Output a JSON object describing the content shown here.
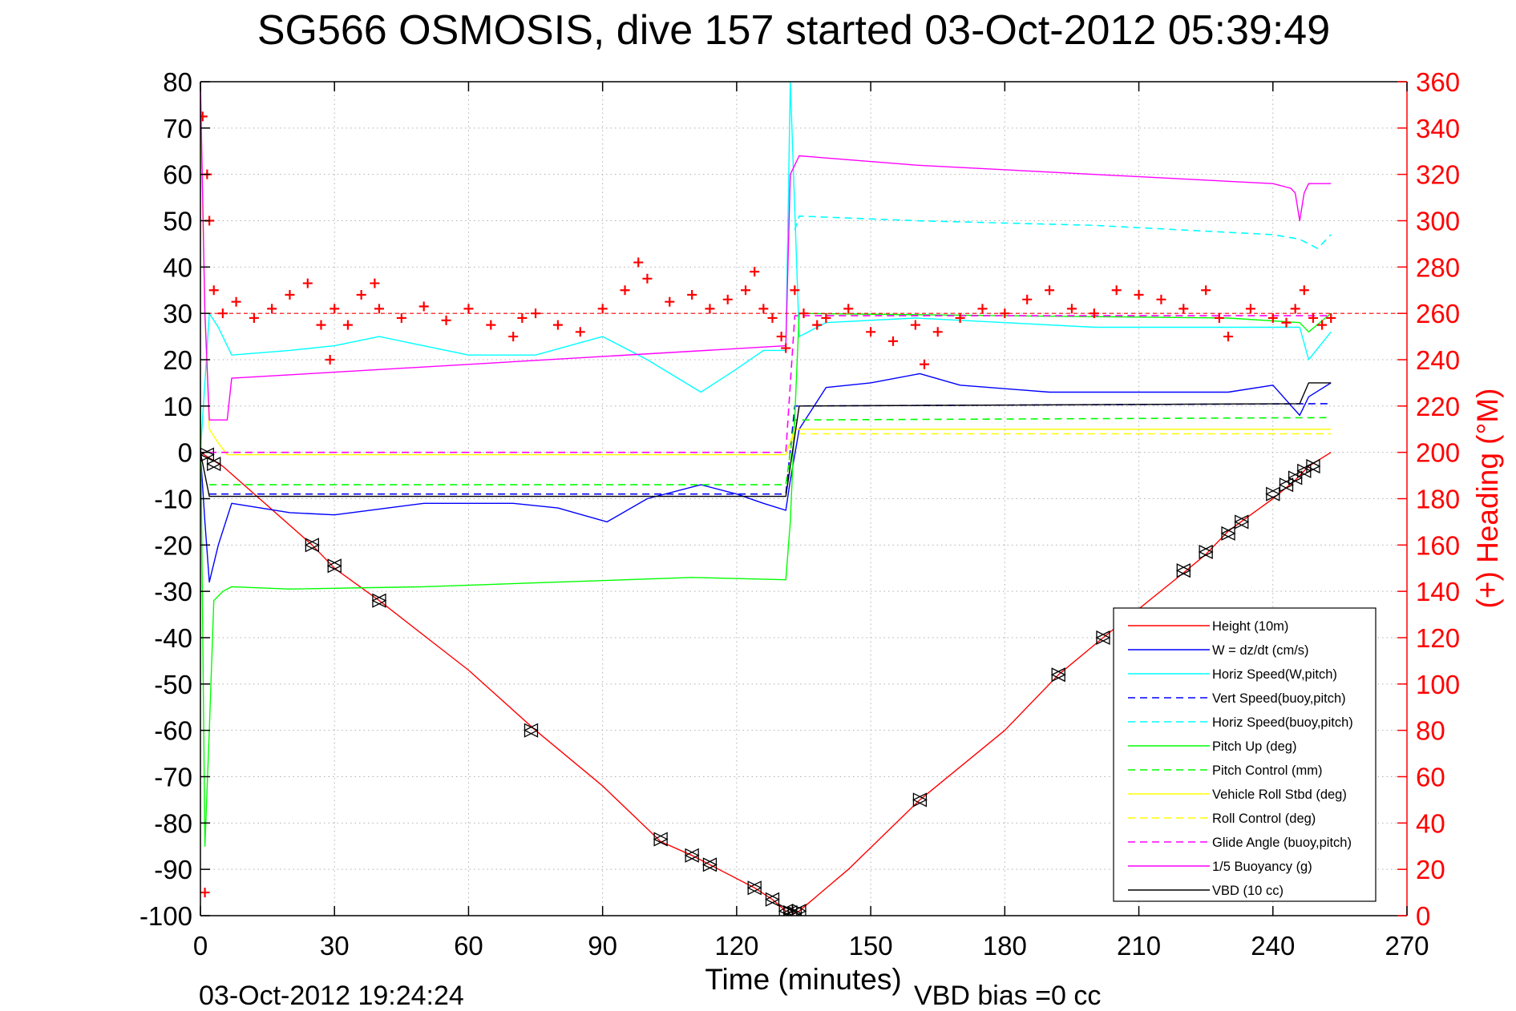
{
  "chart_data": {
    "type": "line",
    "title": "SG566 OSMOSIS, dive 157 started 03-Oct-2012 05:39:49",
    "xlabel": "Time (minutes)",
    "ylabel": "",
    "y2label": "(+) Heading (°M)",
    "footer_left": "03-Oct-2012 19:24:24",
    "footer_right": "VBD bias =0 cc",
    "xlim": [
      0,
      270
    ],
    "ylim": [
      -100,
      80
    ],
    "y2lim": [
      0,
      360
    ],
    "xticks": [
      "0",
      "30",
      "60",
      "90",
      "120",
      "150",
      "180",
      "210",
      "240",
      "270"
    ],
    "yticks": [
      "80",
      "70",
      "60",
      "50",
      "40",
      "30",
      "20",
      "10",
      "0",
      "-10",
      "-20",
      "-30",
      "-40",
      "-50",
      "-60",
      "-70",
      "-80",
      "-90",
      "-100"
    ],
    "y2ticks": [
      "360",
      "340",
      "320",
      "300",
      "280",
      "260",
      "240",
      "220",
      "200",
      "180",
      "160",
      "140",
      "120",
      "100",
      "80",
      "60",
      "40",
      "20",
      "0"
    ],
    "grid": true,
    "legend_position": "bottom-right",
    "colors": {
      "red": "#ff0000",
      "blue": "#0000ff",
      "cyan": "#00ffff",
      "green": "#00ff00",
      "yellow": "#ffff00",
      "magenta": "#ff00ff",
      "black": "#000000"
    },
    "series": [
      {
        "name": "Height (10m)",
        "color": "#ff0000",
        "dash": false,
        "x": [
          0,
          5,
          25,
          30,
          40,
          60,
          75,
          90,
          103,
          110,
          114,
          124,
          128,
          131,
          133,
          134,
          145,
          161,
          180,
          192,
          202,
          220,
          225,
          230,
          240,
          245,
          248,
          253
        ],
        "y": [
          0,
          -3,
          -20,
          -25,
          -32,
          -47,
          -60,
          -72,
          -84,
          -87,
          -89,
          -94,
          -96.5,
          -99,
          -99.5,
          -99,
          -90,
          -75,
          -60,
          -48,
          -40,
          -26,
          -22,
          -17,
          -10,
          -6,
          -3,
          0
        ]
      },
      {
        "name": "W = dz/dt (cm/s)",
        "color": "#0000ff",
        "dash": false,
        "x": [
          0,
          1,
          2,
          4,
          7,
          20,
          30,
          50,
          70,
          80,
          91,
          100,
          112,
          120,
          126,
          131,
          132,
          134,
          140,
          150,
          161,
          170,
          190,
          210,
          230,
          240,
          246,
          248,
          253
        ],
        "y": [
          0,
          -15,
          -28,
          -20,
          -11,
          -13,
          -13.5,
          -11,
          -11,
          -12,
          -15,
          -10,
          -7,
          -9,
          -11,
          -12.5,
          -6,
          5,
          14,
          15,
          17,
          14.5,
          13,
          13,
          13,
          14.5,
          8,
          12,
          15
        ]
      },
      {
        "name": "Horiz Speed(W,pitch)",
        "color": "#00ffff",
        "dash": false,
        "x": [
          0,
          2,
          4,
          7,
          20,
          30,
          40,
          60,
          75,
          90,
          100,
          112,
          120,
          126,
          131,
          132,
          134,
          140,
          160,
          180,
          200,
          220,
          240,
          246,
          248,
          253
        ],
        "y": [
          0,
          30,
          27,
          21,
          22,
          23,
          25,
          21,
          21,
          25,
          20,
          13,
          18,
          22,
          22,
          80,
          25,
          28,
          29,
          28,
          27,
          27,
          27,
          27,
          20,
          26
        ]
      },
      {
        "name": "Vert Speed(buoy,pitch)",
        "color": "#0000ff",
        "dash": true,
        "x": [
          2,
          131,
          133,
          253
        ],
        "y": [
          -9,
          -9,
          10,
          10.5
        ]
      },
      {
        "name": "Horiz Speed(buoy,pitch)",
        "color": "#00ffff",
        "dash": true,
        "x": [
          133,
          134,
          160,
          200,
          240,
          246,
          250,
          253
        ],
        "y": [
          48,
          51,
          50,
          49,
          47,
          46,
          44,
          47
        ]
      },
      {
        "name": "Pitch Up (deg)",
        "color": "#00ff00",
        "dash": false,
        "x": [
          0,
          1,
          2,
          3,
          5,
          7,
          20,
          50,
          80,
          110,
          131,
          132,
          134,
          180,
          230,
          246,
          248,
          253
        ],
        "y": [
          10,
          -85,
          -60,
          -32,
          -30,
          -29,
          -29.5,
          -29,
          -28,
          -27,
          -27.5,
          -15,
          30,
          29.5,
          29,
          28,
          26,
          30
        ]
      },
      {
        "name": "Pitch Control (mm)",
        "color": "#00ff00",
        "dash": true,
        "x": [
          2,
          131,
          133,
          253
        ],
        "y": [
          -7,
          -7,
          7,
          7.5
        ]
      },
      {
        "name": "Vehicle Roll Stbd (deg)",
        "color": "#ffff00",
        "dash": false,
        "x": [
          0,
          1,
          2,
          4,
          6,
          131,
          133,
          253
        ],
        "y": [
          75,
          30,
          5,
          2,
          -0.5,
          -0.5,
          5,
          5
        ]
      },
      {
        "name": "Roll Control (deg)",
        "color": "#ffff00",
        "dash": true,
        "x": [
          2,
          131,
          133,
          253
        ],
        "y": [
          0,
          0,
          4,
          4
        ]
      },
      {
        "name": "Glide Angle (buoy,pitch)",
        "color": "#ff00ff",
        "dash": true,
        "x": [
          2,
          131,
          133,
          253
        ],
        "y": [
          0,
          0,
          29.5,
          29.5
        ]
      },
      {
        "name": "1/5 Buoyancy (g)",
        "color": "#ff00ff",
        "dash": false,
        "x": [
          0,
          1,
          2,
          6,
          7,
          131,
          132,
          134,
          160,
          200,
          240,
          244,
          245,
          246,
          247,
          248,
          253
        ],
        "y": [
          80,
          30,
          7,
          7,
          16,
          23,
          60,
          64,
          62,
          60,
          58,
          57,
          56,
          50,
          56,
          58,
          58
        ]
      },
      {
        "name": "VBD (10 cc)",
        "color": "#000000",
        "dash": false,
        "x": [
          0,
          2,
          131,
          134,
          246,
          248,
          253
        ],
        "y": [
          0,
          -9.5,
          -9.5,
          10,
          10.5,
          15,
          15
        ]
      }
    ],
    "heading": {
      "name": "Heading",
      "color": "#ff0000",
      "marker": "+",
      "reference_deg": 260,
      "x": [
        0.5,
        1,
        1.5,
        2,
        3,
        5,
        8,
        12,
        16,
        20,
        24,
        27,
        29,
        30,
        33,
        36,
        39,
        40,
        45,
        50,
        55,
        60,
        65,
        70,
        72,
        75,
        80,
        85,
        90,
        95,
        98,
        100,
        105,
        110,
        114,
        118,
        122,
        124,
        126,
        128,
        130,
        131,
        133,
        135,
        138,
        140,
        145,
        150,
        155,
        160,
        162,
        165,
        170,
        175,
        180,
        185,
        190,
        195,
        200,
        205,
        210,
        215,
        220,
        225,
        228,
        230,
        235,
        240,
        243,
        245,
        247,
        249,
        251,
        253
      ],
      "y": [
        345,
        10,
        320,
        300,
        270,
        260,
        265,
        258,
        262,
        268,
        273,
        255,
        240,
        262,
        255,
        268,
        273,
        262,
        258,
        263,
        257,
        262,
        255,
        250,
        258,
        260,
        255,
        252,
        262,
        270,
        282,
        275,
        265,
        268,
        262,
        266,
        270,
        278,
        262,
        258,
        250,
        245,
        270,
        260,
        255,
        258,
        262,
        252,
        248,
        255,
        238,
        252,
        258,
        262,
        260,
        266,
        270,
        262,
        260,
        270,
        268,
        266,
        262,
        270,
        258,
        250,
        262,
        258,
        256,
        262,
        270,
        258,
        255,
        258
      ]
    },
    "depth_markers": {
      "marker": "triangle-cross",
      "x": [
        1.5,
        3,
        25,
        30,
        40,
        74,
        103,
        110,
        114,
        124,
        128,
        131,
        132,
        133,
        134,
        161,
        192,
        202,
        220,
        225,
        230,
        233,
        240,
        243,
        245,
        247,
        249
      ],
      "y": [
        -0.5,
        -2.5,
        -20,
        -24.5,
        -32,
        -60,
        -83.5,
        -87,
        -89,
        -94,
        -96.5,
        -99,
        -99.3,
        -99.5,
        -99,
        -75,
        -48,
        -40,
        -25.5,
        -21.5,
        -17.5,
        -15,
        -9,
        -7,
        -5.5,
        -4,
        -3
      ]
    }
  }
}
